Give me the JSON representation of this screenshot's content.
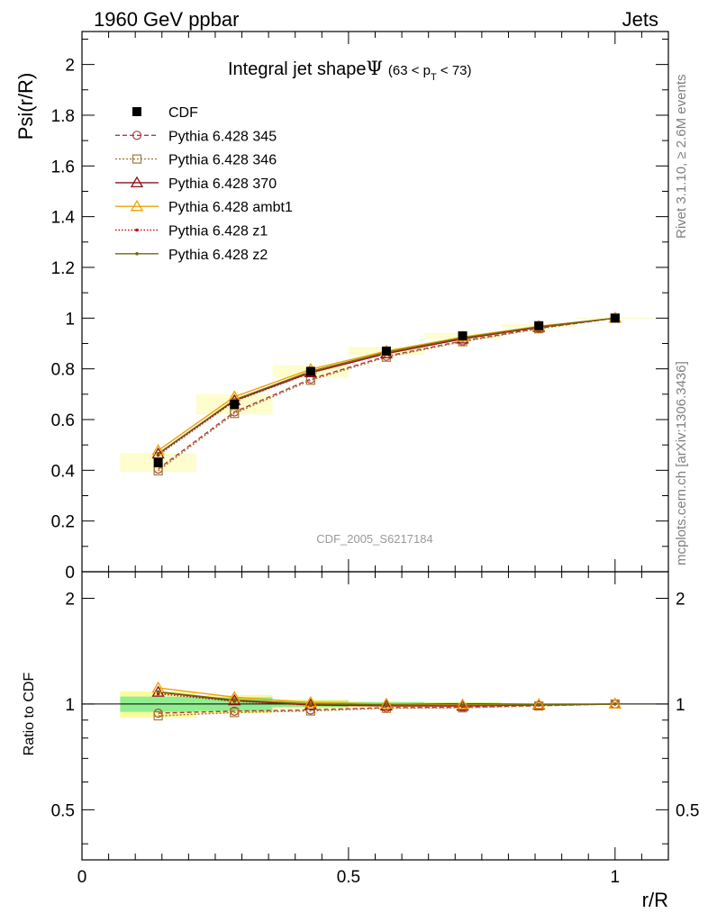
{
  "header": {
    "left": "1960 GeV ppbar",
    "right": "Jets"
  },
  "side": {
    "rivet": "Rivet 3.1.10, ≥ 2.6M events",
    "mcplots": "mcplots.cern.ch [arXiv:1306.3436]"
  },
  "chart_data": {
    "type": "line",
    "title": "Integral jet shape",
    "title_symbol": "Ψ",
    "title_range": "(63 < p",
    "title_range_sub": "T",
    "title_range_end": " < 73)",
    "analysis_label": "CDF_2005_S6217184",
    "xlabel": "r/R",
    "ylabel": "Psi(r/R)",
    "ratio_ylabel": "Ratio to CDF",
    "xlim": [
      0,
      1.1
    ],
    "ylim": [
      0,
      2.13
    ],
    "ratio_ylim": [
      0.36,
      2.38
    ],
    "ratio_scale": "log",
    "x_ticks": [
      {
        "v": 0,
        "label": "0"
      },
      {
        "v": 0.5,
        "label": "0.5"
      },
      {
        "v": 1,
        "label": "1"
      }
    ],
    "y_ticks": [
      {
        "v": 0,
        "label": "0"
      },
      {
        "v": 0.2,
        "label": "0.2"
      },
      {
        "v": 0.4,
        "label": "0.4"
      },
      {
        "v": 0.6,
        "label": "0.6"
      },
      {
        "v": 0.8,
        "label": "0.8"
      },
      {
        "v": 1,
        "label": "1"
      },
      {
        "v": 1.2,
        "label": "1.2"
      },
      {
        "v": 1.4,
        "label": "1.4"
      },
      {
        "v": 1.6,
        "label": "1.6"
      },
      {
        "v": 1.8,
        "label": "1.8"
      },
      {
        "v": 2,
        "label": "2"
      }
    ],
    "ratio_ticks": [
      {
        "v": 0.5,
        "label": "0.5"
      },
      {
        "v": 1,
        "label": "1"
      },
      {
        "v": 2,
        "label": "2"
      }
    ],
    "x": [
      0.143,
      0.286,
      0.429,
      0.571,
      0.714,
      0.857,
      1.0
    ],
    "data": {
      "name": "CDF",
      "values": [
        0.43,
        0.66,
        0.79,
        0.87,
        0.93,
        0.97,
        1.0
      ],
      "band_inner": [
        0.05,
        0.045,
        0.02,
        0.012,
        0.008,
        0.004,
        0.002
      ],
      "band_outer": [
        0.085,
        0.06,
        0.03,
        0.018,
        0.012,
        0.006,
        0.003
      ],
      "color": "#000000"
    },
    "series": [
      {
        "name": "Pythia 6.428 345",
        "values": [
          0.405,
          0.63,
          0.76,
          0.85,
          0.91,
          0.96,
          1.0
        ],
        "color": "#b2383e",
        "dash": "5,3",
        "marker": "circle"
      },
      {
        "name": "Pythia 6.428 346",
        "values": [
          0.398,
          0.624,
          0.755,
          0.846,
          0.907,
          0.958,
          1.0
        ],
        "color": "#a5783a",
        "dash": "2,2",
        "marker": "square"
      },
      {
        "name": "Pythia 6.428 370",
        "values": [
          0.465,
          0.675,
          0.785,
          0.86,
          0.918,
          0.964,
          1.0
        ],
        "color": "#8b1018",
        "dash": "",
        "marker": "triangle"
      },
      {
        "name": "Pythia 6.428 ambt1",
        "values": [
          0.478,
          0.69,
          0.798,
          0.87,
          0.925,
          0.968,
          1.0
        ],
        "color": "#f0a000",
        "dash": "",
        "marker": "triangle"
      },
      {
        "name": "Pythia 6.428 z1",
        "values": [
          0.46,
          0.672,
          0.784,
          0.86,
          0.918,
          0.964,
          1.0
        ],
        "color": "#c0101a",
        "dash": "1.5,2",
        "marker": "dot"
      },
      {
        "name": "Pythia 6.428 z2",
        "values": [
          0.466,
          0.678,
          0.79,
          0.865,
          0.922,
          0.966,
          1.0
        ],
        "color": "#6b6a10",
        "dash": "",
        "marker": "dot"
      }
    ]
  }
}
